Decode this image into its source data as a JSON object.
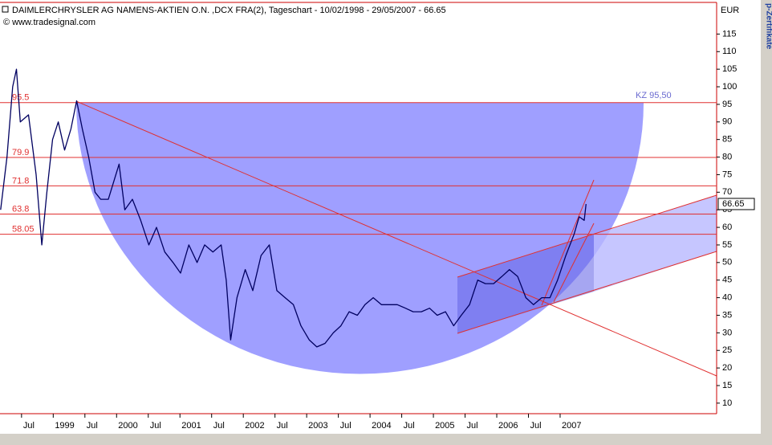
{
  "chart_data": {
    "type": "line",
    "title": "DAIMLERCHRYSLER AG NAMENS-AKTIEN O.N. ,DCX FRA(2), Tageschart - 10/02/1998 - 29/05/2007 - 66.65",
    "subtitle": "© www.tradesignal.com",
    "y_axis_label": "EUR",
    "annotation": "KZ 95,50",
    "side_text": "p-Zertifikate",
    "last_value": 66.65,
    "levels": [
      95.5,
      79.9,
      71.8,
      63.8,
      58.05
    ],
    "levels_color": "#e03030",
    "xlim": [
      1998.16,
      2009.47
    ],
    "ylim": [
      7,
      124
    ],
    "xticks": [
      {
        "value": 1998.5,
        "label": "Jul"
      },
      1999,
      {
        "value": 1999.5,
        "label": "Jul"
      },
      2000,
      {
        "value": 2000.5,
        "label": "Jul"
      },
      2001,
      {
        "value": 2001.5,
        "label": "Jul"
      },
      2002,
      {
        "value": 2002.5,
        "label": "Jul"
      },
      2003,
      {
        "value": 2003.5,
        "label": "Jul"
      },
      2004,
      {
        "value": 2004.5,
        "label": "Jul"
      },
      2005,
      {
        "value": 2005.5,
        "label": "Jul"
      },
      2006,
      {
        "value": 2006.5,
        "label": "Jul"
      },
      2007
    ],
    "yticks": [
      10,
      15,
      20,
      25,
      30,
      35,
      40,
      45,
      50,
      55,
      60,
      65,
      70,
      75,
      80,
      85,
      90,
      95,
      100,
      105,
      110,
      115
    ],
    "series": [
      {
        "name": "DCX",
        "color": "#000060",
        "x": [
          1998.17,
          1998.27,
          1998.36,
          1998.42,
          1998.48,
          1998.61,
          1998.73,
          1998.82,
          1998.9,
          1998.99,
          1999.08,
          1999.18,
          1999.28,
          1999.37,
          1999.46,
          1999.56,
          1999.66,
          1999.75,
          1999.87,
          2000.04,
          2000.13,
          2000.25,
          2000.38,
          2000.51,
          2000.63,
          2000.76,
          2000.89,
          2001.01,
          2001.14,
          2001.27,
          2001.39,
          2001.52,
          2001.65,
          2001.73,
          2001.8,
          2001.9,
          2002.03,
          2002.15,
          2002.28,
          2002.41,
          2002.53,
          2002.66,
          2002.79,
          2002.91,
          2003.04,
          2003.16,
          2003.29,
          2003.42,
          2003.54,
          2003.67,
          2003.8,
          2003.92,
          2004.05,
          2004.18,
          2004.3,
          2004.43,
          2004.56,
          2004.68,
          2004.81,
          2004.94,
          2005.06,
          2005.19,
          2005.32,
          2005.44,
          2005.57,
          2005.7,
          2005.82,
          2005.95,
          2006.08,
          2006.2,
          2006.33,
          2006.46,
          2006.58,
          2006.71,
          2006.84,
          2006.96,
          2007.09,
          2007.22,
          2007.3,
          2007.38,
          2007.41
        ],
        "values": [
          65,
          80,
          100,
          105,
          90,
          92,
          75,
          55,
          70,
          85,
          90,
          82,
          88,
          96,
          88,
          80,
          70,
          68,
          68,
          78,
          65,
          68,
          62,
          55,
          60,
          53,
          50,
          47,
          55,
          50,
          55,
          53,
          55,
          45,
          28,
          40,
          48,
          42,
          52,
          55,
          42,
          40,
          38,
          32,
          28,
          26,
          27,
          30,
          32,
          36,
          35,
          38,
          40,
          38,
          38,
          38,
          37,
          36,
          36,
          37,
          35,
          36,
          32,
          35,
          38,
          45,
          44,
          44,
          46,
          48,
          46,
          40,
          38,
          40,
          40,
          45,
          52,
          58,
          63,
          62,
          66.65
        ]
      }
    ]
  }
}
